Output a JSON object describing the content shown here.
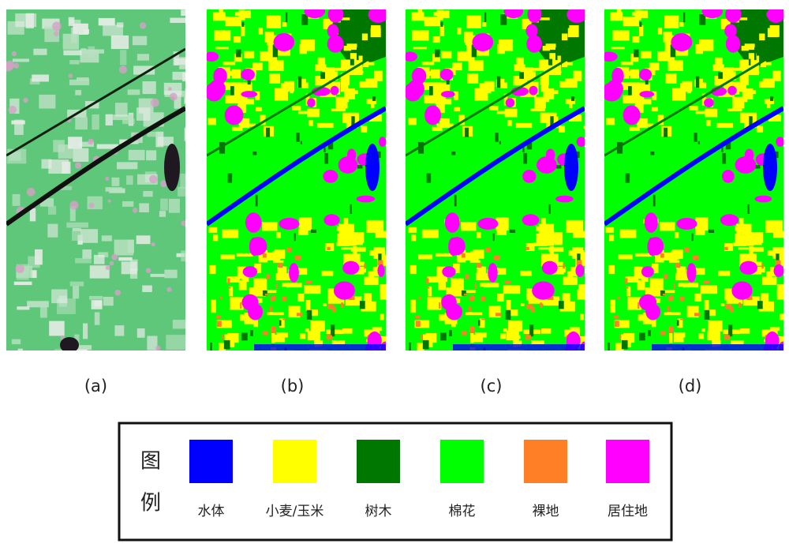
{
  "panels": [
    {
      "label": "(a)"
    },
    {
      "label": "(b)"
    },
    {
      "label": "(c)"
    },
    {
      "label": "(d)"
    }
  ],
  "legend": {
    "title": "图例",
    "items": [
      {
        "label": "水体",
        "color": "#0000ff"
      },
      {
        "label": "小麦/玉米",
        "color": "#ffff00"
      },
      {
        "label": "树木",
        "color": "#007800"
      },
      {
        "label": "棉花",
        "color": "#00ff00"
      },
      {
        "label": "裸地",
        "color": "#ff7f27"
      },
      {
        "label": "居住地",
        "color": "#ff00ff"
      }
    ]
  }
}
